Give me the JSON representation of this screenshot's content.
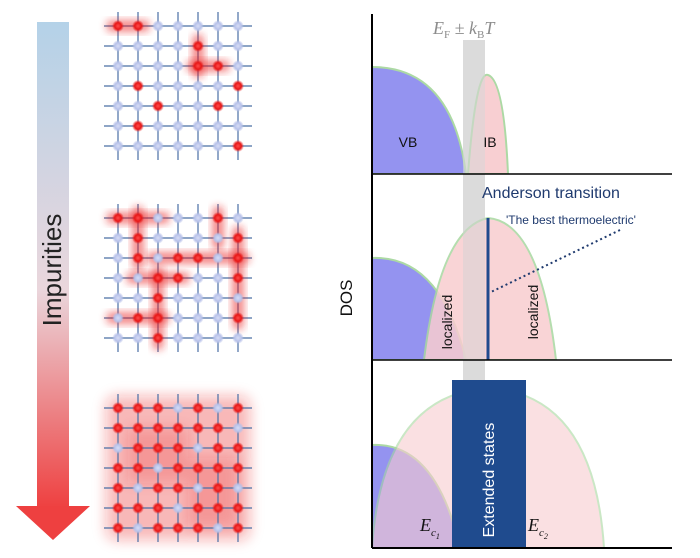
{
  "left_panel": {
    "arrow_label": "Impurities",
    "lattice_stages": [
      {
        "stage": "low",
        "impurity_sites": [
          [
            0,
            0
          ],
          [
            1,
            0
          ],
          [
            4,
            1
          ],
          [
            4,
            2
          ],
          [
            5,
            2
          ],
          [
            1,
            3
          ],
          [
            6,
            3
          ],
          [
            2,
            4
          ],
          [
            5,
            4
          ],
          [
            1,
            5
          ],
          [
            6,
            6
          ]
        ],
        "impurity_bands": [
          {
            "orientation": "h",
            "row": 0,
            "from": 0,
            "to": 1
          },
          {
            "orientation": "v",
            "col": 4,
            "from": 1,
            "to": 2
          },
          {
            "orientation": "h",
            "row": 2,
            "from": 4,
            "to": 5
          }
        ]
      },
      {
        "stage": "medium",
        "impurity_sites": [
          [
            0,
            0
          ],
          [
            1,
            0
          ],
          [
            5,
            0
          ],
          [
            1,
            1
          ],
          [
            6,
            1
          ],
          [
            1,
            2
          ],
          [
            3,
            2
          ],
          [
            4,
            2
          ],
          [
            6,
            2
          ],
          [
            2,
            3
          ],
          [
            3,
            3
          ],
          [
            6,
            3
          ],
          [
            2,
            4
          ],
          [
            1,
            5
          ],
          [
            2,
            5
          ],
          [
            6,
            5
          ],
          [
            2,
            6
          ]
        ],
        "impurity_bands": [
          {
            "orientation": "h",
            "row": 0,
            "from": 0,
            "to": 2
          },
          {
            "orientation": "v",
            "col": 1,
            "from": 0,
            "to": 2
          },
          {
            "orientation": "v",
            "col": 5,
            "from": 0,
            "to": 1
          },
          {
            "orientation": "h",
            "row": 2,
            "from": 2,
            "to": 6
          },
          {
            "orientation": "h",
            "row": 3,
            "from": 1,
            "to": 3
          },
          {
            "orientation": "v",
            "col": 2,
            "from": 3,
            "to": 6
          },
          {
            "orientation": "v",
            "col": 6,
            "from": 1,
            "to": 5
          },
          {
            "orientation": "h",
            "row": 5,
            "from": 0,
            "to": 2
          }
        ]
      },
      {
        "stage": "high",
        "impurity_sites": [
          [
            0,
            0
          ],
          [
            1,
            0
          ],
          [
            2,
            0
          ],
          [
            4,
            0
          ],
          [
            6,
            0
          ],
          [
            0,
            1
          ],
          [
            1,
            1
          ],
          [
            2,
            1
          ],
          [
            3,
            1
          ],
          [
            4,
            1
          ],
          [
            5,
            1
          ],
          [
            1,
            2
          ],
          [
            2,
            2
          ],
          [
            3,
            2
          ],
          [
            5,
            2
          ],
          [
            6,
            2
          ],
          [
            0,
            3
          ],
          [
            1,
            3
          ],
          [
            3,
            3
          ],
          [
            4,
            3
          ],
          [
            5,
            3
          ],
          [
            6,
            3
          ],
          [
            0,
            4
          ],
          [
            2,
            4
          ],
          [
            3,
            4
          ],
          [
            5,
            4
          ],
          [
            0,
            5
          ],
          [
            1,
            5
          ],
          [
            2,
            5
          ],
          [
            4,
            5
          ],
          [
            5,
            5
          ],
          [
            6,
            5
          ],
          [
            0,
            6
          ],
          [
            2,
            6
          ],
          [
            3,
            6
          ],
          [
            4,
            6
          ],
          [
            6,
            6
          ]
        ],
        "impurity_bands": []
      }
    ]
  },
  "dos_panel": {
    "y_axis_label": "DOS",
    "fermi_label": {
      "main": "E",
      "sub1": "F",
      "mid": " ± k",
      "sub2": "B",
      "end": "T"
    },
    "top": {
      "vb_label": "VB",
      "ib_label": "IB"
    },
    "middle": {
      "transition_label": "Anderson transition",
      "annotation": "'The best thermoelectric'",
      "localized_left": "localized",
      "localized_right": "localized"
    },
    "bottom": {
      "extended_label": "Extended states",
      "ec1": {
        "main": "E",
        "sub": "c",
        "subsub": "1"
      },
      "ec2": {
        "main": "E",
        "sub": "c",
        "subsub": "2"
      }
    }
  },
  "colors": {
    "arrow_top": "#b4d2e8",
    "arrow_bottom": "#ee4040",
    "lattice_line": "#4a6fa5",
    "lattice_node": "#b8c2ea",
    "impurity": "#e81818",
    "band_blue": "#8f8ef0",
    "band_pink": "#f8cdd0",
    "band_edge": "#a8d8a0",
    "extended": "#1f4b8e",
    "fermi_band": "#d8d8d8",
    "axis": "#000000",
    "fermi_text": "#8c8c8c",
    "transition_text": "#1f3a6e"
  }
}
